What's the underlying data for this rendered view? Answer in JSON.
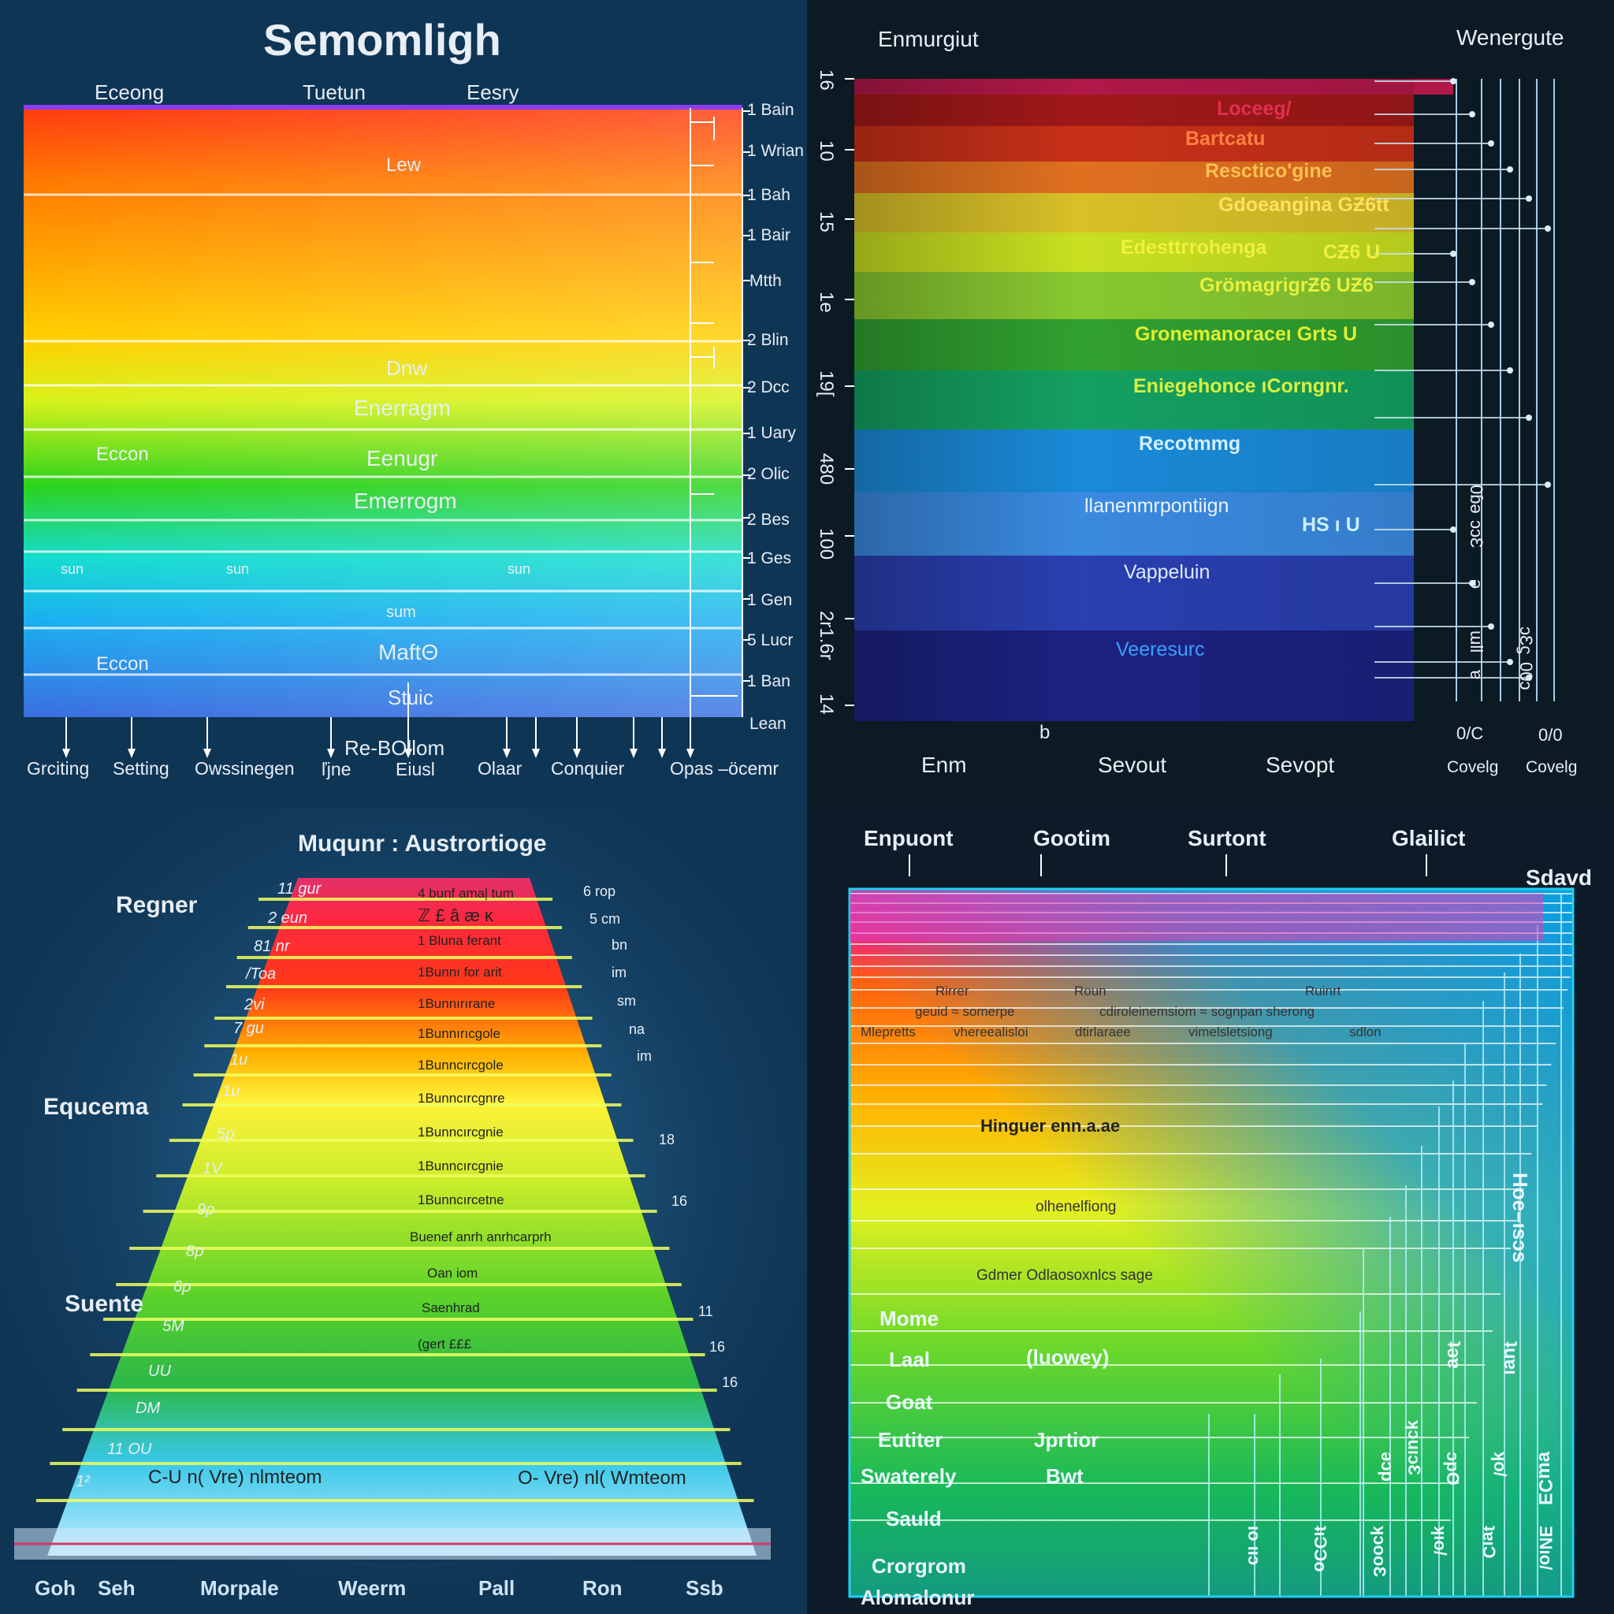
{
  "colors": {
    "spectrum": [
      "#7c2bd4",
      "#ff2a0a",
      "#ff7a00",
      "#ffd200",
      "#e6ff1a",
      "#9ee81a",
      "#2ac81a",
      "#18d8b0",
      "#16c4f2",
      "#2a8ef0",
      "#3a5fd8"
    ]
  },
  "q1": {
    "title": "Semomligh",
    "col_headers": [
      "Eceong",
      "Tuetun",
      "Eesry"
    ],
    "band_labels": [
      {
        "text": "Lew"
      },
      {
        "text": "Dnw"
      },
      {
        "text": "Enerragm"
      },
      {
        "text": "Eenugr"
      },
      {
        "text": "Emerrogm"
      },
      {
        "text": "sum"
      },
      {
        "text": "MaftΘ"
      },
      {
        "text": "Stuic"
      }
    ],
    "side_labels": [
      {
        "text": "Eccon"
      },
      {
        "text": "Eccon"
      }
    ],
    "sun_labels": [
      "sun",
      "sun",
      "sun"
    ],
    "scale_labels": [
      "1 Bain",
      "1 Wrian",
      "1 Bah",
      "1 Bair",
      "Mtth",
      "2 Blin",
      "2 Dcc",
      "1 Uary",
      "2 Olic",
      "2 Bes",
      "1 Ges",
      "1 Gen",
      "5 Lucr",
      "1 Ban",
      "Lean"
    ],
    "bottom_labels": [
      "Grciting",
      "Setting",
      "Owssinegen",
      "Re-BOllom",
      "ľjne",
      "Eiusl",
      "Olaar",
      "Conquier",
      "Opas –öcemr"
    ]
  },
  "q2": {
    "title_left": "Enmurgiut",
    "title_right": "Wenergute",
    "y_labels": [
      "16",
      "10",
      "15",
      "1e",
      "19[",
      "480",
      "100",
      "2r1.6r",
      "14"
    ],
    "band_labels": [
      "Loceeg/",
      "Bartcatu",
      "Resctico'gine",
      "Gdoeangina GƵ6tt",
      "Edesttгrohenga",
      "GrömagrigrƵ6 UƵ6",
      "Gronemanoraceı Grts U",
      "Eniegehonce ıCorngnr.",
      "Recotmmg",
      "llanenmrpontiign",
      "Vappeluin",
      "Veeresurc"
    ],
    "band_suffixes": [
      "",
      "",
      "",
      "",
      "CƵ6 U",
      "",
      "",
      "",
      "",
      "HS ı U",
      "",
      ""
    ],
    "b_label": "b",
    "right_vert_labels": [
      "0ɓǝ",
      "ɔɔƐ",
      "ǝ",
      "ɯll",
      "ɐ",
      "ɔƐϛ",
      "00ɔ"
    ],
    "right_bottom_values": [
      "0/C",
      "0/0"
    ],
    "bottom_labels": [
      "Enm",
      "Sevout",
      "Sevopt",
      "Covelg",
      "Covelg"
    ]
  },
  "q3": {
    "title": "Muqunr :  Austrortioge",
    "side_labels": [
      "Regner",
      "Equcema",
      "Suente"
    ],
    "left_ticks": [
      "11 gur",
      "2 eun",
      "81 nr",
      "/Toa",
      "2vi",
      "7 gu",
      "1u",
      "1u",
      "5ρ",
      "1V",
      "9ρ",
      "8ρ",
      "6ρ",
      "5M",
      "UU",
      "DM",
      "11 OU",
      "1²"
    ],
    "right_ticks": [
      "6 rop",
      "5 cm",
      "bn",
      "im",
      "sm",
      "na",
      "im",
      "18",
      "16",
      "11",
      "16",
      "16"
    ],
    "band_text": [
      "4 bunf amaļ tum",
      "ℤ £ â æ κ",
      "1 Bluna ferant",
      "1Bunnı for arit",
      "1Bunnırırane",
      "1Bunnırıcgole",
      "1Bunncırcgole",
      "1Bunncırcgnre",
      "1Bunncırcgnie",
      "1Bunncırcgnie",
      "1Bunncırcetne",
      "Buenef anrh anrhcarprh",
      "Oan iom",
      "Saenhrad",
      "(gert £££"
    ],
    "mid_left": "C-U n(  Vre) nlmteom",
    "mid_right": "O-  Vre) nl(  Wmteom",
    "bottom_labels": [
      "Goh",
      "Seh",
      "Morpale",
      "Weerm",
      "Pall",
      "Ron",
      "Ssb"
    ]
  },
  "q4": {
    "top_labels": [
      "Enpuont",
      "Gootim",
      "Surtont",
      "Glailict"
    ],
    "top_right": "Sdavd",
    "small_rows": [
      [
        "Rirrer",
        "Roun",
        "Ruinrt"
      ],
      [
        "geuid  ≈ somerpe",
        "cdiroleinemsiom ≈ sognpan  sherong"
      ],
      [
        "Mlepretts",
        "vhereealisloi",
        "dtirlaraee",
        "vimelsletsiong",
        "sdlon"
      ]
    ],
    "mid_labels": [
      "Hinguer enn.a.ae",
      "olhenelfiong",
      "Gdmer Odlaosoxnlcs sage"
    ],
    "row_labels": [
      "Mome",
      "Laal",
      "Goat",
      "Eutiter",
      "Swaterely",
      "Sauld",
      "Crorgrom"
    ],
    "row_values": [
      "",
      "(luowey)",
      "",
      "Jprtior",
      "Bwt",
      "",
      ""
    ],
    "vert_labels": [
      "Hoe–ısɔs",
      "ʇǝɐ",
      "ʇuɐı",
      "ǝɔp",
      "ʞɔuıɔƐ",
      "ɔpƟ",
      "ʞo/",
      "ɐɯƆƎ",
      "ıo ııɔ",
      "ʇıƆƆo",
      "ʞɔooƐ",
      "ʞıo/",
      "ʇɐıƆ",
      "ƎNıo/"
    ],
    "bottom_label": "Alomalonur"
  }
}
